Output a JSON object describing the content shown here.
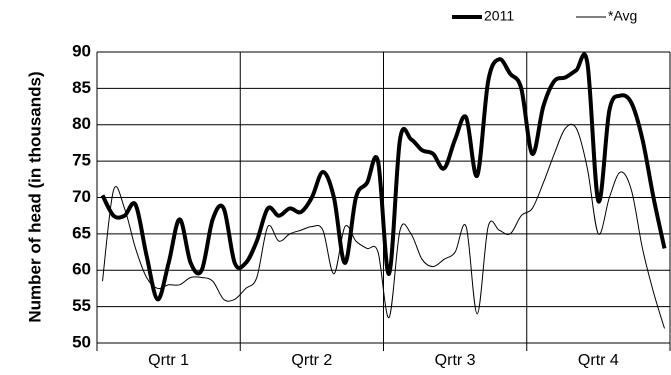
{
  "chart_data": {
    "type": "line",
    "y_label": "Number of head (in thousands)",
    "categories": [
      null,
      null,
      null,
      null,
      null,
      null,
      "Qrtr 1",
      null,
      null,
      null,
      null,
      null,
      null,
      null,
      null,
      null,
      null,
      null,
      null,
      "Qrtr 2",
      null,
      null,
      null,
      null,
      null,
      null,
      null,
      null,
      null,
      null,
      null,
      null,
      "Qrtr 3",
      null,
      null,
      null,
      null,
      null,
      null,
      null,
      null,
      null,
      null,
      null,
      null,
      "Qrtr 4",
      null,
      null,
      null,
      null,
      null,
      null
    ],
    "series": [
      {
        "name": "2011",
        "color": "#000000",
        "values": [
          70.3,
          67.5,
          67.5,
          69,
          62,
          56,
          61,
          67,
          61,
          60,
          67,
          68.5,
          61,
          61,
          64,
          68.5,
          67.5,
          68.5,
          68,
          70,
          73.5,
          70,
          61,
          70,
          72,
          75,
          59.5,
          78,
          78,
          76.5,
          76,
          74,
          78,
          81,
          73,
          86,
          89,
          87,
          85,
          76,
          82.5,
          86,
          86.5,
          87.5,
          88.5,
          69.5,
          82,
          84,
          83,
          78,
          70,
          63
        ]
      },
      {
        "name": "*Avg",
        "color": "#000000",
        "values": [
          58.5,
          71,
          68.5,
          63,
          59,
          57.5,
          58,
          58,
          59,
          59,
          58.5,
          56,
          56,
          57.5,
          59,
          66,
          64,
          65,
          65.5,
          66,
          65.5,
          59.5,
          66,
          64,
          63,
          62.5,
          53.5,
          65.5,
          65,
          61.5,
          60.5,
          61.5,
          62.5,
          66,
          54,
          66,
          65.5,
          65,
          67.5,
          68.5,
          72,
          76,
          79.5,
          79.5,
          74,
          65,
          70,
          73.5,
          71,
          63,
          57,
          52
        ]
      }
    ],
    "ylim": [
      50,
      90
    ],
    "yticks": [
      50,
      55,
      60,
      65,
      70,
      75,
      80,
      85,
      90
    ],
    "grid": true,
    "legend": "top-right"
  }
}
